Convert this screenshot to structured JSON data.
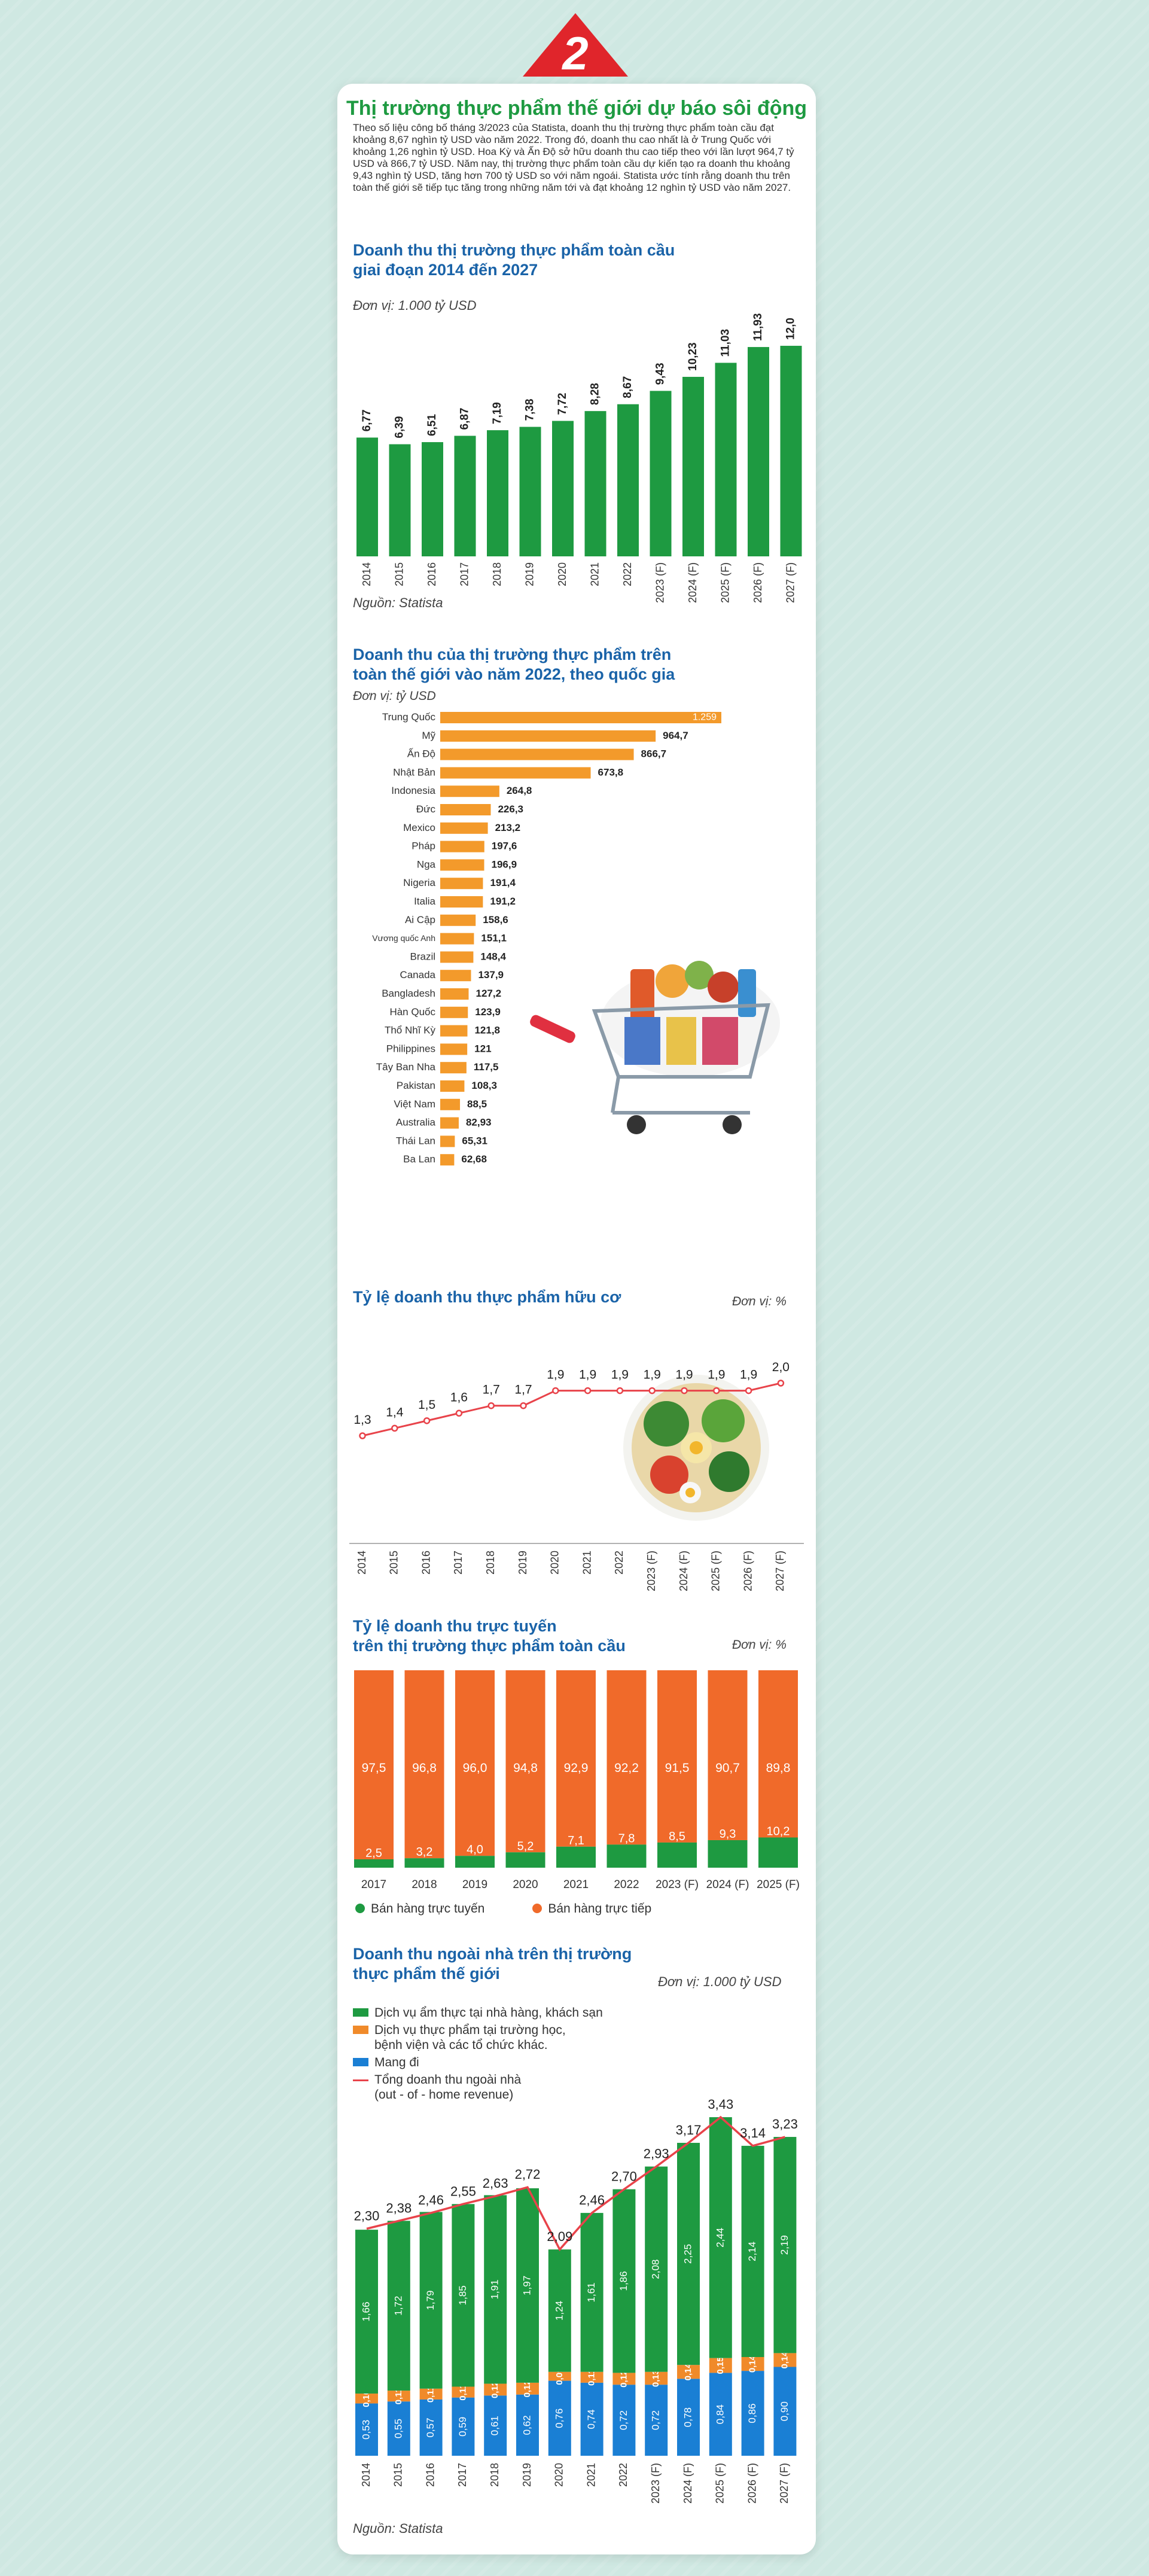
{
  "badge_number": "2",
  "title": "Thị trường thực phẩm thế giới dự báo sôi động",
  "intro": "Theo số liệu công bố tháng 3/2023 của Statista, doanh thu thị trường thực phẩm toàn cầu đạt khoảng 8,67 nghìn tỷ USD vào năm 2022. Trong đó, doanh thu cao nhất là ở Trung Quốc với khoảng 1,26 nghìn tỷ USD. Hoa Kỳ và Ấn Độ sở hữu doanh thu cao tiếp theo với lần lượt 964,7 tỷ USD và 866,7 tỷ USD. Năm nay, thị trường thực phẩm toàn cầu dự kiến tạo ra doanh thu khoảng 9,43 nghìn tỷ USD, tăng hơn 700 tỷ USD so với năm ngoái. Statista ước tính rằng doanh thu trên toàn thế giới sẽ tiếp tục tăng trong những năm tới và đạt khoảng 12 nghìn tỷ USD vào năm 2027.",
  "chart_data": [
    {
      "type": "bar",
      "title": "Doanh thu thị trường thực phẩm toàn cầu giai đoạn 2014 đến 2027",
      "title_lines": [
        "Doanh thu thị trường thực phẩm toàn cầu",
        "giai đoạn 2014 đến 2027"
      ],
      "unit": "Đơn vị: 1.000 tỷ USD",
      "categories": [
        "2014",
        "2015",
        "2016",
        "2017",
        "2018",
        "2019",
        "2020",
        "2021",
        "2022",
        "2023 (F)",
        "2024 (F)",
        "2025 (F)",
        "2026 (F)",
        "2027 (F)"
      ],
      "values": [
        6.77,
        6.39,
        6.51,
        6.87,
        7.19,
        7.38,
        7.72,
        8.28,
        8.67,
        9.43,
        10.23,
        11.03,
        11.93,
        12.0
      ],
      "labels": [
        "6,77",
        "6,39",
        "6,51",
        "6,87",
        "7,19",
        "7,38",
        "7,72",
        "8,28",
        "8,67",
        "9,43",
        "10,23",
        "11,03",
        "11,93",
        "12,0"
      ],
      "source": "Nguồn: Statista",
      "color": "#1e9a41"
    },
    {
      "type": "bar",
      "orientation": "horizontal",
      "title": "Doanh thu của thị trường thực phẩm trên toàn thế giới vào năm 2022, theo quốc gia",
      "title_lines": [
        "Doanh thu của thị trường thực phẩm trên",
        "toàn thế giới vào năm 2022, theo quốc gia"
      ],
      "unit": "Đơn vị: tỷ USD",
      "categories": [
        "Trung Quốc",
        "Mỹ",
        "Ấn Độ",
        "Nhật Bản",
        "Indonesia",
        "Đức",
        "Mexico",
        "Pháp",
        "Nga",
        "Nigeria",
        "Italia",
        "Ai Cập",
        "Vương quốc Anh",
        "Brazil",
        "Canada",
        "Bangladesh",
        "Hàn Quốc",
        "Thổ Nhĩ Kỳ",
        "Philippines",
        "Tây Ban Nha",
        "Pakistan",
        "Việt Nam",
        "Australia",
        "Thái Lan",
        "Ba Lan"
      ],
      "values": [
        1259,
        964.7,
        866.7,
        673.8,
        264.8,
        226.3,
        213.2,
        197.6,
        196.9,
        191.4,
        191.2,
        158.6,
        151.1,
        148.4,
        137.9,
        127.2,
        123.9,
        121.8,
        121,
        117.5,
        108.3,
        88.5,
        82.93,
        65.31,
        62.68
      ],
      "labels": [
        "1.259",
        "964,7",
        "866,7",
        "673,8",
        "264,8",
        "226,3",
        "213,2",
        "197,6",
        "196,9",
        "191,4",
        "191,2",
        "158,6",
        "151,1",
        "148,4",
        "137,9",
        "127,2",
        "123,9",
        "121,8",
        "121",
        "117,5",
        "108,3",
        "88,5",
        "82,93",
        "65,31",
        "62,68"
      ],
      "color": "#f39a2b"
    },
    {
      "type": "line",
      "title": "Tỷ lệ doanh thu thực phẩm hữu cơ",
      "unit": "Đơn vị: %",
      "categories": [
        "2014",
        "2015",
        "2016",
        "2017",
        "2018",
        "2019",
        "2020",
        "2021",
        "2022",
        "2023 (F)",
        "2024 (F)",
        "2025 (F)",
        "2026 (F)",
        "2027 (F)"
      ],
      "values": [
        1.3,
        1.4,
        1.5,
        1.6,
        1.7,
        1.7,
        1.9,
        1.9,
        1.9,
        1.9,
        1.9,
        1.9,
        1.9,
        2.0
      ],
      "labels": [
        "1,3",
        "1,4",
        "1,5",
        "1,6",
        "1,7",
        "1,7",
        "1,9",
        "1,9",
        "1,9",
        "1,9",
        "1,9",
        "1,9",
        "1,9",
        "2,0"
      ],
      "color": "#e8434a"
    },
    {
      "type": "bar",
      "stacked": true,
      "title": "Tỷ lệ doanh thu trực tuyến trên thị trường thực phẩm toàn cầu",
      "title_lines": [
        "Tỷ lệ doanh thu trực tuyến",
        "trên thị trường thực phẩm toàn cầu"
      ],
      "unit": "Đơn vị: %",
      "categories": [
        "2017",
        "2018",
        "2019",
        "2020",
        "2021",
        "2022",
        "2023 (F)",
        "2024 (F)",
        "2025 (F)"
      ],
      "series": [
        {
          "name": "Bán hàng trực tuyến",
          "color": "#1e9a41",
          "values": [
            2.5,
            3.2,
            4.0,
            5.2,
            7.1,
            7.8,
            8.5,
            9.3,
            10.2
          ],
          "labels": [
            "2,5",
            "3,2",
            "4,0",
            "5,2",
            "7,1",
            "7,8",
            "8,5",
            "9,3",
            "10,2"
          ]
        },
        {
          "name": "Bán hàng trực tiếp",
          "color": "#f06a2a",
          "values": [
            97.5,
            96.8,
            96.0,
            94.8,
            92.9,
            92.2,
            91.5,
            90.7,
            89.8
          ],
          "labels": [
            "97,5",
            "96,8",
            "96,0",
            "94,8",
            "92,9",
            "92,2",
            "91,5",
            "90,7",
            "89,8"
          ]
        }
      ]
    },
    {
      "type": "bar",
      "stacked": true,
      "title": "Doanh thu ngoài nhà trên thị trường thực phẩm thế giới",
      "title_lines": [
        "Doanh thu ngoài nhà trên thị trường",
        "thực phẩm thế giới"
      ],
      "unit": "Đơn vị: 1.000 tỷ USD",
      "categories": [
        "2014",
        "2015",
        "2016",
        "2017",
        "2018",
        "2019",
        "2020",
        "2021",
        "2022",
        "2023 (F)",
        "2024 (F)",
        "2025 (F)",
        "2026 (F)",
        "2027 (F)"
      ],
      "series": [
        {
          "name": "Mang đi",
          "color": "#1a7fd4",
          "values": [
            0.53,
            0.55,
            0.57,
            0.59,
            0.61,
            0.62,
            0.76,
            0.74,
            0.72,
            0.72,
            0.78,
            0.84,
            0.86,
            0.9
          ],
          "labels": [
            "0,53",
            "0,55",
            "0,57",
            "0,59",
            "0,61",
            "0,62",
            "0,76",
            "0,74",
            "0,72",
            "0,72",
            "0,78",
            "0,84",
            "0,86",
            "0,90"
          ]
        },
        {
          "name": "Dịch vụ thực phẩm tại trường học, bệnh viện và các tổ chức khác.",
          "color": "#f08a2a",
          "values": [
            0.1,
            0.11,
            0.11,
            0.11,
            0.12,
            0.12,
            0.09,
            0.11,
            0.12,
            0.13,
            0.14,
            0.15,
            0.14,
            0.14
          ],
          "labels": [
            "0,10",
            "0,11",
            "0,11",
            "0,11",
            "0,12",
            "0,12",
            "0,09",
            "0,11",
            "0,12",
            "0,13",
            "0,14",
            "0,15",
            "0,14",
            "0,14"
          ]
        },
        {
          "name": "Dịch vụ ẩm thực tại nhà hàng, khách sạn",
          "color": "#1e9a41",
          "values": [
            1.66,
            1.72,
            1.79,
            1.85,
            1.91,
            1.97,
            1.24,
            1.61,
            1.86,
            2.08,
            2.25,
            2.44,
            2.14,
            2.19
          ],
          "labels": [
            "1,66",
            "1,72",
            "1,79",
            "1,85",
            "1,91",
            "1,97",
            "1,24",
            "1,61",
            "1,86",
            "2,08",
            "2,25",
            "2,44",
            "2,14",
            "2,19"
          ]
        }
      ],
      "total": {
        "name": "Tổng doanh thu ngoài nhà (out - of - home revenue)",
        "name_lines": [
          "Tổng doanh thu ngoài nhà",
          "(out - of - home revenue)"
        ],
        "color": "#e8434a",
        "values": [
          2.3,
          2.38,
          2.46,
          2.55,
          2.63,
          2.72,
          2.09,
          2.46,
          2.7,
          2.93,
          3.17,
          3.43,
          3.14,
          3.23
        ],
        "labels": [
          "2,30",
          "2,38",
          "2,46",
          "2,55",
          "2,63",
          "2,72",
          "2,09",
          "2,46",
          "2,70",
          "2,93",
          "3,17",
          "3,43",
          "3,14",
          "3,23"
        ]
      },
      "legend_order": [
        "Dịch vụ ẩm thực tại nhà hàng, khách sạn",
        "Dịch vụ thực phẩm tại trường học, bệnh viện và các tổ chức khác.",
        "Mang đi",
        "Tổng doanh thu ngoài nhà (out - of - home revenue)"
      ],
      "legend_lines": [
        [
          "Dịch vụ ẩm thực tại nhà hàng, khách sạn"
        ],
        [
          "Dịch vụ thực phẩm tại trường học,",
          "bệnh viện và các tổ chức khác."
        ],
        [
          "Mang đi"
        ]
      ],
      "source": "Nguồn: Statista"
    }
  ]
}
